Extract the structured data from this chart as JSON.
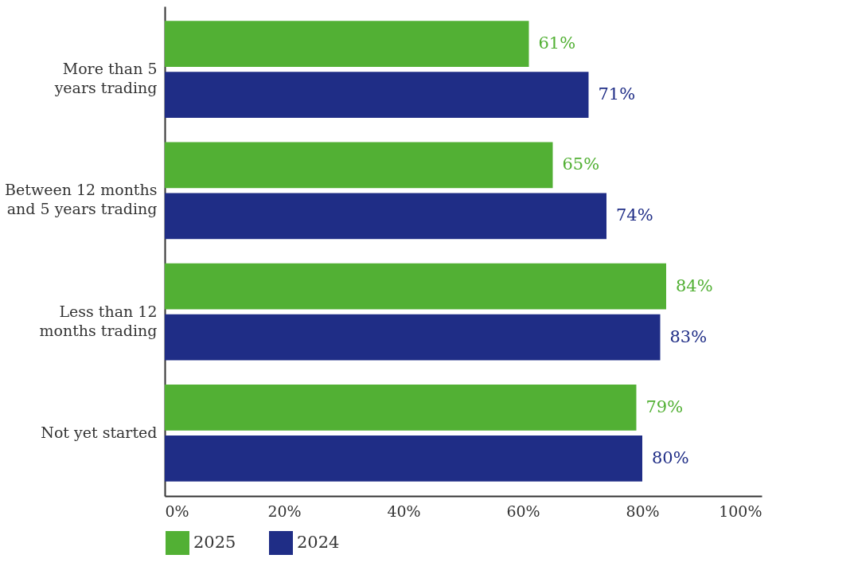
{
  "chart_data": {
    "type": "bar",
    "orientation": "horizontal",
    "categories": [
      "More than 5 years trading",
      "Between 12 months and 5 years trading",
      "Less than 12 months trading",
      "Not yet started"
    ],
    "series": [
      {
        "name": "2025",
        "color": "#52b034",
        "values": [
          61,
          65,
          84,
          79
        ],
        "value_labels": [
          "61%",
          "65%",
          "84%",
          "79%"
        ]
      },
      {
        "name": "2024",
        "color": "#1f2d86",
        "values": [
          71,
          74,
          83,
          80
        ],
        "value_labels": [
          "71%",
          "74%",
          "83%",
          "80%"
        ]
      }
    ],
    "xlim": [
      0,
      100
    ],
    "xticks": [
      {
        "value": 0,
        "label": "0%"
      },
      {
        "value": 20,
        "label": "20%"
      },
      {
        "value": 40,
        "label": "40%"
      },
      {
        "value": 60,
        "label": "60%"
      },
      {
        "value": 80,
        "label": "80%"
      },
      {
        "value": 100,
        "label": "100%"
      }
    ],
    "grid": false,
    "legend": "bottom"
  }
}
